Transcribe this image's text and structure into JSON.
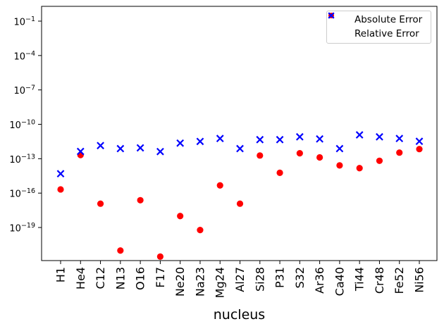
{
  "figure": {
    "background": "#ffffff",
    "axes_color": "#000000"
  },
  "chart_data": {
    "type": "scatter",
    "title": "",
    "xlabel": "nucleus",
    "ylabel": "",
    "yscale": "log",
    "ylim": [
      1e-22,
      2
    ],
    "y_tick_exponents": [
      -1,
      -4,
      -7,
      -10,
      -13,
      -16,
      -19
    ],
    "grid": false,
    "legend_position": "upper right",
    "categories": [
      "H1",
      "He4",
      "C12",
      "N13",
      "O16",
      "F17",
      "Ne20",
      "Na23",
      "Mg24",
      "Al27",
      "Si28",
      "P31",
      "S32",
      "Ar36",
      "Ca40",
      "Ti44",
      "Cr48",
      "Fe52",
      "Ni56"
    ],
    "series": [
      {
        "name": "Absolute Error",
        "marker": "circle",
        "color": "#ff0000",
        "values": [
          2.1e-16,
          2.1e-13,
          1.2e-17,
          9.8e-22,
          2.4e-17,
          2.9e-22,
          1e-18,
          6e-20,
          4.7e-16,
          1.2e-17,
          1.9e-13,
          5.9e-15,
          3e-13,
          1.3e-13,
          2.6e-14,
          1.5e-14,
          6.6e-14,
          3.4e-13,
          6.9e-13
        ]
      },
      {
        "name": "Relative Error",
        "marker": "x",
        "color": "#0000ff",
        "values": [
          4.9e-15,
          4.3e-13,
          1.4e-12,
          7.6e-13,
          8.8e-13,
          4.2e-13,
          2.3e-12,
          3.2e-12,
          5.8e-12,
          7.6e-13,
          4.6e-12,
          4.6e-12,
          8.1e-12,
          5.3e-12,
          7.6e-13,
          1.2e-11,
          8.1e-12,
          5.8e-12,
          3.3e-12
        ]
      }
    ]
  }
}
